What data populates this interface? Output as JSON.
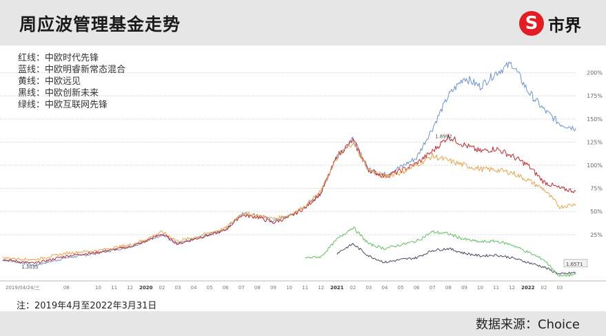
{
  "header": {
    "title": "周应波管理基金走势",
    "brand_icon": "S",
    "brand_name": "市界"
  },
  "legend": [
    {
      "label": "红线：中欧时代先锋",
      "color": "#c0262e"
    },
    {
      "label": "蓝线：中欧明睿新常态混合",
      "color": "#6b94cf"
    },
    {
      "label": "黄线：中欧远见",
      "color": "#e8a24a"
    },
    {
      "label": "黑线：中欧创新未来",
      "color": "#4a4560"
    },
    {
      "label": "绿线：中欧互联网先锋",
      "color": "#5fbf60"
    }
  ],
  "note": "注：2019年4月至2022年3月31日",
  "source": "数据来源：Choice",
  "chart_data": {
    "type": "line",
    "y_ticks": [
      "25%",
      "50%",
      "75%",
      "100%",
      "125%",
      "150%",
      "175%",
      "200%"
    ],
    "y_tick_values": [
      25,
      50,
      75,
      100,
      125,
      150,
      175,
      200
    ],
    "ylim": [
      -25,
      225
    ],
    "x_range": [
      "2019-04",
      "2022-04"
    ],
    "x_ticks": [
      {
        "label": "2019/04/24/三",
        "x": "2019-04"
      },
      {
        "label": "08",
        "x": "2019-08"
      },
      {
        "label": "10",
        "x": "2019-10"
      },
      {
        "label": "11",
        "x": "2019-11"
      },
      {
        "label": "12",
        "x": "2019-12"
      },
      {
        "label": "2020",
        "x": "2020-01"
      },
      {
        "label": "02",
        "x": "2020-02"
      },
      {
        "label": "03",
        "x": "2020-03"
      },
      {
        "label": "04",
        "x": "2020-04"
      },
      {
        "label": "05",
        "x": "2020-05"
      },
      {
        "label": "06",
        "x": "2020-06"
      },
      {
        "label": "07",
        "x": "2020-07"
      },
      {
        "label": "08",
        "x": "2020-08"
      },
      {
        "label": "09",
        "x": "2020-09"
      },
      {
        "label": "10",
        "x": "2020-10"
      },
      {
        "label": "11",
        "x": "2020-11"
      },
      {
        "label": "12",
        "x": "2020-12"
      },
      {
        "label": "2021",
        "x": "2021-01"
      },
      {
        "label": "02",
        "x": "2021-02"
      },
      {
        "label": "03",
        "x": "2021-03"
      },
      {
        "label": "04",
        "x": "2021-04"
      },
      {
        "label": "05",
        "x": "2021-05"
      },
      {
        "label": "06",
        "x": "2021-06"
      },
      {
        "label": "07",
        "x": "2021-07"
      },
      {
        "label": "08",
        "x": "2021-08"
      },
      {
        "label": "09",
        "x": "2021-09"
      },
      {
        "label": "10",
        "x": "2021-10"
      },
      {
        "label": "11",
        "x": "2021-11"
      },
      {
        "label": "12",
        "x": "2021-12"
      },
      {
        "label": "2022",
        "x": "2022-01"
      },
      {
        "label": "02",
        "x": "2022-02"
      },
      {
        "label": "03",
        "x": "2022-03"
      }
    ],
    "annotations": [
      {
        "text": "1.3035",
        "x": "2019-05",
        "y": -10
      },
      {
        "text": "1.8992",
        "x": "2021-07",
        "y": 131
      },
      {
        "text": "1.6571",
        "x": "2022-03",
        "y": -7
      }
    ],
    "series": [
      {
        "color": "#6b94cf",
        "points": [
          [
            "2019-04",
            -2
          ],
          [
            "2019-06",
            -8
          ],
          [
            "2019-08",
            0
          ],
          [
            "2019-10",
            5
          ],
          [
            "2019-12",
            12
          ],
          [
            "2020-01",
            18
          ],
          [
            "2020-02",
            25
          ],
          [
            "2020-03",
            15
          ],
          [
            "2020-04",
            20
          ],
          [
            "2020-06",
            30
          ],
          [
            "2020-07",
            48
          ],
          [
            "2020-08",
            46
          ],
          [
            "2020-09",
            40
          ],
          [
            "2020-10",
            45
          ],
          [
            "2020-11",
            55
          ],
          [
            "2020-12",
            70
          ],
          [
            "2021-01",
            110
          ],
          [
            "2021-02",
            128
          ],
          [
            "2021-03",
            95
          ],
          [
            "2021-04",
            90
          ],
          [
            "2021-05",
            98
          ],
          [
            "2021-06",
            108
          ],
          [
            "2021-07",
            140
          ],
          [
            "2021-08",
            175
          ],
          [
            "2021-09",
            195
          ],
          [
            "2021-10",
            185
          ],
          [
            "2021-11",
            200
          ],
          [
            "2021-12",
            210
          ],
          [
            "2022-01",
            180
          ],
          [
            "2022-02",
            160
          ],
          [
            "2022-03",
            145
          ],
          [
            "2022-04",
            140
          ]
        ]
      },
      {
        "color": "#c0262e",
        "points": [
          [
            "2019-04",
            -2
          ],
          [
            "2019-06",
            -6
          ],
          [
            "2019-08",
            2
          ],
          [
            "2019-10",
            6
          ],
          [
            "2019-12",
            12
          ],
          [
            "2020-01",
            18
          ],
          [
            "2020-02",
            26
          ],
          [
            "2020-03",
            15
          ],
          [
            "2020-04",
            20
          ],
          [
            "2020-06",
            30
          ],
          [
            "2020-07",
            46
          ],
          [
            "2020-08",
            44
          ],
          [
            "2020-09",
            38
          ],
          [
            "2020-10",
            44
          ],
          [
            "2020-11",
            54
          ],
          [
            "2020-12",
            70
          ],
          [
            "2021-01",
            110
          ],
          [
            "2021-02",
            127
          ],
          [
            "2021-03",
            95
          ],
          [
            "2021-04",
            88
          ],
          [
            "2021-05",
            94
          ],
          [
            "2021-06",
            102
          ],
          [
            "2021-07",
            115
          ],
          [
            "2021-08",
            131
          ],
          [
            "2021-09",
            122
          ],
          [
            "2021-10",
            115
          ],
          [
            "2021-11",
            118
          ],
          [
            "2021-12",
            110
          ],
          [
            "2022-01",
            100
          ],
          [
            "2022-02",
            82
          ],
          [
            "2022-03",
            75
          ],
          [
            "2022-04",
            72
          ]
        ]
      },
      {
        "color": "#e8a24a",
        "points": [
          [
            "2019-04",
            0
          ],
          [
            "2019-06",
            -2
          ],
          [
            "2019-08",
            5
          ],
          [
            "2019-10",
            8
          ],
          [
            "2019-12",
            14
          ],
          [
            "2020-01",
            20
          ],
          [
            "2020-02",
            28
          ],
          [
            "2020-03",
            18
          ],
          [
            "2020-04",
            22
          ],
          [
            "2020-06",
            32
          ],
          [
            "2020-07",
            48
          ],
          [
            "2020-08",
            46
          ],
          [
            "2020-09",
            42
          ],
          [
            "2020-10",
            46
          ],
          [
            "2020-11",
            56
          ],
          [
            "2020-12",
            72
          ],
          [
            "2021-01",
            108
          ],
          [
            "2021-02",
            125
          ],
          [
            "2021-03",
            95
          ],
          [
            "2021-04",
            88
          ],
          [
            "2021-05",
            92
          ],
          [
            "2021-06",
            100
          ],
          [
            "2021-07",
            110
          ],
          [
            "2021-08",
            105
          ],
          [
            "2021-09",
            100
          ],
          [
            "2021-10",
            96
          ],
          [
            "2021-11",
            95
          ],
          [
            "2021-12",
            92
          ],
          [
            "2022-01",
            84
          ],
          [
            "2022-02",
            74
          ],
          [
            "2022-03",
            55
          ],
          [
            "2022-04",
            58
          ]
        ]
      },
      {
        "color": "#4a4560",
        "points": [
          [
            "2021-01",
            5
          ],
          [
            "2021-02",
            15
          ],
          [
            "2021-03",
            2
          ],
          [
            "2021-04",
            -5
          ],
          [
            "2021-05",
            -2
          ],
          [
            "2021-06",
            0
          ],
          [
            "2021-07",
            8
          ],
          [
            "2021-08",
            10
          ],
          [
            "2021-09",
            5
          ],
          [
            "2021-10",
            2
          ],
          [
            "2021-11",
            3
          ],
          [
            "2021-12",
            0
          ],
          [
            "2022-01",
            -5
          ],
          [
            "2022-02",
            -10
          ],
          [
            "2022-03",
            -18
          ],
          [
            "2022-04",
            -16
          ]
        ]
      },
      {
        "color": "#5fbf60",
        "points": [
          [
            "2020-11",
            0
          ],
          [
            "2020-12",
            1
          ],
          [
            "2021-01",
            20
          ],
          [
            "2021-02",
            33
          ],
          [
            "2021-03",
            15
          ],
          [
            "2021-04",
            10
          ],
          [
            "2021-05",
            14
          ],
          [
            "2021-06",
            18
          ],
          [
            "2021-07",
            28
          ],
          [
            "2021-08",
            26
          ],
          [
            "2021-09",
            20
          ],
          [
            "2021-10",
            17
          ],
          [
            "2021-11",
            18
          ],
          [
            "2021-12",
            14
          ],
          [
            "2022-01",
            6
          ],
          [
            "2022-02",
            -2
          ],
          [
            "2022-03",
            -20
          ],
          [
            "2022-04",
            -18
          ]
        ]
      }
    ]
  }
}
